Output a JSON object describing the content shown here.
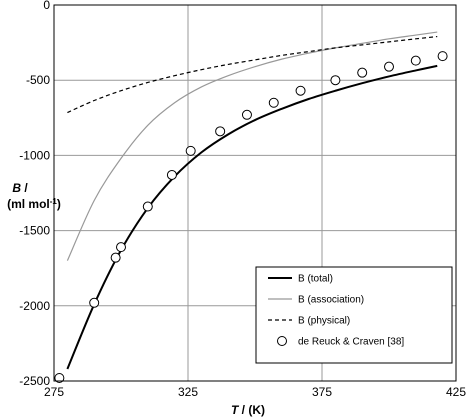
{
  "chart_data": {
    "type": "line",
    "xlabel": "T / (K)",
    "ylabel": "B / (ml mol-1)",
    "xlim": [
      275,
      425
    ],
    "ylim": [
      -2500,
      0
    ],
    "x_ticks": [
      "275",
      "325",
      "375",
      "425"
    ],
    "y_ticks": [
      "0",
      "-500",
      "-1000",
      "-1500",
      "-2000",
      "-2500"
    ],
    "grid": true,
    "legend_position": "bottom-right",
    "series": [
      {
        "name": "B (total)",
        "style": "solid",
        "color": "#000000",
        "x": [
          280,
          290,
          300,
          310,
          320,
          330,
          340,
          350,
          360,
          370,
          380,
          390,
          400,
          410,
          418
        ],
        "y": [
          -2420,
          -1990,
          -1630,
          -1350,
          -1140,
          -980,
          -860,
          -765,
          -690,
          -625,
          -570,
          -520,
          -475,
          -435,
          -405
        ]
      },
      {
        "name": "B (association)",
        "style": "solid",
        "color": "#999999",
        "x": [
          280,
          290,
          300,
          310,
          320,
          330,
          340,
          350,
          360,
          370,
          380,
          390,
          400,
          410,
          418
        ],
        "y": [
          -1700,
          -1300,
          -1020,
          -800,
          -650,
          -545,
          -470,
          -410,
          -360,
          -320,
          -285,
          -255,
          -225,
          -200,
          -180
        ]
      },
      {
        "name": "B (physical)",
        "style": "dashed",
        "color": "#000000",
        "x": [
          280,
          290,
          300,
          310,
          320,
          330,
          340,
          350,
          360,
          370,
          380,
          390,
          400,
          410,
          418
        ],
        "y": [
          -715,
          -635,
          -570,
          -515,
          -470,
          -430,
          -395,
          -365,
          -335,
          -310,
          -285,
          -265,
          -245,
          -225,
          -210
        ]
      },
      {
        "name": "de Reuck & Craven [38]",
        "style": "markers",
        "marker": "open-circle",
        "x": [
          277,
          290,
          298,
          300,
          310,
          319,
          326,
          337,
          347,
          357,
          367,
          380,
          390,
          400,
          410,
          420
        ],
        "y": [
          -2480,
          -1980,
          -1680,
          -1610,
          -1340,
          -1130,
          -970,
          -840,
          -730,
          -650,
          -570,
          -500,
          -450,
          -410,
          -370,
          -340
        ]
      }
    ]
  }
}
